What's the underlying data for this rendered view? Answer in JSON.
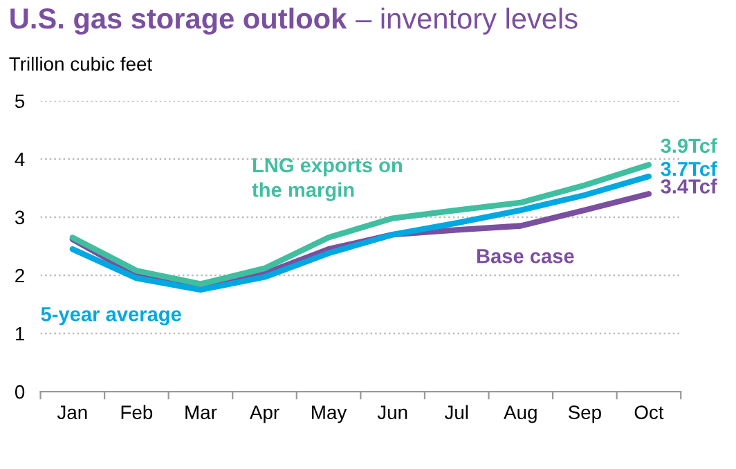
{
  "chart_data": {
    "type": "line",
    "title": "U.S. gas storage outlook",
    "subtitle": "– inventory levels",
    "ylabel": "Trillion cubic feet",
    "categories": [
      "Jan",
      "Feb",
      "Mar",
      "Apr",
      "May",
      "Jun",
      "Jul",
      "Aug",
      "Sep",
      "Oct"
    ],
    "series": [
      {
        "name": "LNG exports on the margin",
        "color": "#3fbfa0",
        "values": [
          2.65,
          2.08,
          1.85,
          2.12,
          2.65,
          2.98,
          3.12,
          3.25,
          3.55,
          3.9
        ],
        "value_labels": [
          null,
          null,
          null,
          null,
          null,
          null,
          null,
          null,
          null,
          "3.9Tcf"
        ]
      },
      {
        "name": "5-year average",
        "color": "#00a8e1",
        "values": [
          2.45,
          1.95,
          1.75,
          1.97,
          2.38,
          2.7,
          2.9,
          3.12,
          3.38,
          3.7
        ],
        "value_labels": [
          null,
          null,
          null,
          null,
          null,
          null,
          null,
          null,
          null,
          "3.7Tcf"
        ]
      },
      {
        "name": "Base case",
        "color": "#7b4fa0",
        "values": [
          2.62,
          2.0,
          1.78,
          2.03,
          2.45,
          2.7,
          2.78,
          2.85,
          3.12,
          3.4
        ],
        "value_labels": [
          null,
          null,
          null,
          null,
          null,
          null,
          null,
          null,
          null,
          "3.4Tcf"
        ]
      }
    ],
    "ylim": [
      0,
      5
    ],
    "yticks": [
      0,
      1,
      2,
      3,
      4,
      5
    ],
    "grid": "y",
    "legend": false,
    "marker": "none",
    "line_style": "solid"
  }
}
